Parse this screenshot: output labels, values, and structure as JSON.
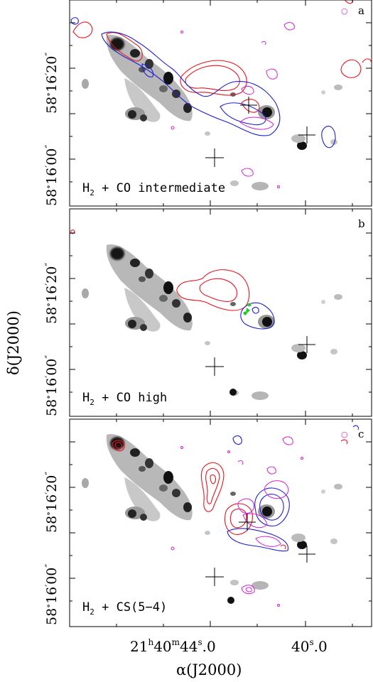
{
  "figure": {
    "x_axis_label_prefix": "α(J2000)",
    "y_axis_label": "δ(J2000)",
    "x_tick_1": {
      "h": "21",
      "h_sup": "h",
      "m": "40",
      "m_sup": "m",
      "s": "44",
      "s_sup": "s",
      "frac": ".0"
    },
    "x_tick_2": {
      "s": "40",
      "s_sup": "s",
      "frac": ".0"
    },
    "y_ticks": [
      "58°16′20″",
      "58°16′00″"
    ],
    "y_tick_parts": {
      "deg": "58",
      "min": "16",
      "sec_top": "20",
      "sec_bottom": "00"
    }
  },
  "panels": [
    {
      "letter": "a",
      "label_main": "H",
      "label_sub": "2",
      "label_rest": " + CO intermediate"
    },
    {
      "letter": "b",
      "label_main": "H",
      "label_sub": "2",
      "label_rest": " + CO high"
    },
    {
      "letter": "c",
      "label_main": "H",
      "label_sub": "2",
      "label_rest": " + CS(5−4)"
    }
  ],
  "colors": {
    "red_contour": "#e8121b",
    "blue_contour": "#1d1fd0",
    "magenta_contour": "#d21fd0",
    "green_marker": "#22cc22",
    "grey_emission": "#7a7a7a"
  }
}
